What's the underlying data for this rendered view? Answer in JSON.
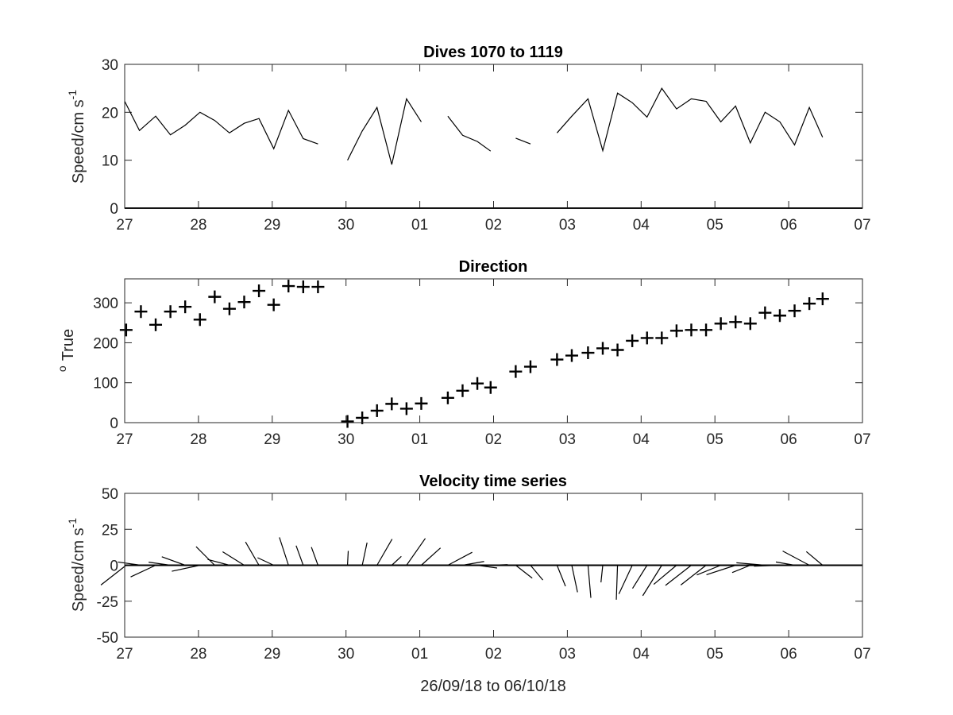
{
  "figure": {
    "xlabel": "26/09/18 to 06/10/18"
  },
  "chart_data": [
    {
      "type": "line",
      "title": "Dives 1070 to 1119",
      "ylabel": "Speed/cm s",
      "ylabel_sup": "-1",
      "xlim": [
        27,
        37
      ],
      "ylim": [
        0,
        30
      ],
      "xticks": [
        "27",
        "28",
        "29",
        "30",
        "01",
        "02",
        "03",
        "04",
        "05",
        "06",
        "07"
      ],
      "yticks": [
        "0",
        "10",
        "20",
        "30"
      ],
      "series": [
        {
          "points": [
            [
              27.0,
              22.3
            ],
            [
              27.2,
              16.2
            ],
            [
              27.42,
              19.2
            ],
            [
              27.62,
              15.3
            ],
            [
              27.82,
              17.3
            ],
            [
              28.02,
              20.0
            ],
            [
              28.22,
              18.3
            ],
            [
              28.42,
              15.7
            ],
            [
              28.62,
              17.7
            ],
            [
              28.82,
              18.7
            ],
            [
              29.02,
              12.4
            ],
            [
              29.22,
              20.4
            ],
            [
              29.42,
              14.5
            ],
            [
              29.62,
              13.4
            ]
          ]
        },
        {
          "points": [
            [
              30.02,
              10.0
            ],
            [
              30.22,
              16.1
            ],
            [
              30.42,
              21.0
            ],
            [
              30.62,
              9.1
            ],
            [
              30.82,
              22.8
            ],
            [
              31.02,
              18.0
            ]
          ]
        },
        {
          "points": [
            [
              31.38,
              19.2
            ],
            [
              31.58,
              15.2
            ],
            [
              31.78,
              13.9
            ],
            [
              31.96,
              11.9
            ]
          ]
        },
        {
          "points": [
            [
              32.3,
              14.6
            ],
            [
              32.5,
              13.4
            ]
          ]
        },
        {
          "points": [
            [
              32.86,
              15.7
            ],
            [
              33.06,
              19.2
            ],
            [
              33.28,
              22.8
            ],
            [
              33.48,
              12.0
            ],
            [
              33.68,
              24.0
            ],
            [
              33.88,
              22.0
            ],
            [
              34.08,
              19.0
            ],
            [
              34.28,
              25.0
            ],
            [
              34.48,
              20.7
            ],
            [
              34.68,
              22.8
            ],
            [
              34.88,
              22.3
            ],
            [
              35.08,
              18.0
            ],
            [
              35.28,
              21.3
            ],
            [
              35.48,
              13.6
            ],
            [
              35.68,
              20.0
            ],
            [
              35.88,
              18.0
            ],
            [
              36.08,
              13.2
            ],
            [
              36.28,
              21.0
            ],
            [
              36.46,
              14.8
            ]
          ]
        }
      ],
      "zero_line": true
    },
    {
      "type": "scatter",
      "title": "Direction",
      "ylabel": "True",
      "ylabel_pre": "o",
      "xlim": [
        27,
        37
      ],
      "ylim": [
        0,
        360
      ],
      "xticks": [
        "27",
        "28",
        "29",
        "30",
        "01",
        "02",
        "03",
        "04",
        "05",
        "06",
        "07"
      ],
      "yticks": [
        "0",
        "100",
        "200",
        "300"
      ],
      "marker": "plus",
      "x": [
        27.02,
        27.22,
        27.42,
        27.62,
        27.82,
        28.02,
        28.22,
        28.42,
        28.62,
        28.82,
        29.02,
        29.22,
        29.42,
        29.62,
        30.02,
        30.22,
        30.42,
        30.62,
        30.82,
        31.02,
        31.38,
        31.58,
        31.78,
        31.96,
        32.3,
        32.5,
        32.86,
        33.06,
        33.28,
        33.48,
        33.68,
        33.88,
        34.08,
        34.28,
        34.48,
        34.68,
        34.88,
        35.08,
        35.28,
        35.48,
        35.68,
        35.88,
        36.08,
        36.28,
        36.46
      ],
      "y": [
        232,
        278,
        245,
        278,
        290,
        258,
        315,
        285,
        302,
        330,
        295,
        342,
        340,
        340,
        3,
        12,
        30,
        47,
        35,
        48,
        62,
        80,
        98,
        88,
        128,
        140,
        158,
        168,
        175,
        186,
        182,
        205,
        212,
        212,
        230,
        232,
        232,
        248,
        252,
        248,
        275,
        268,
        280,
        298,
        310
      ]
    },
    {
      "type": "vector",
      "title": "Velocity time series",
      "ylabel": "Speed/cm s",
      "ylabel_sup": "-1",
      "xlim": [
        27,
        37
      ],
      "ylim": [
        -50,
        50
      ],
      "xticks": [
        "27",
        "28",
        "29",
        "30",
        "01",
        "02",
        "03",
        "04",
        "05",
        "06",
        "07"
      ],
      "yticks": [
        "50",
        "25",
        "0",
        "-25",
        "-50"
      ],
      "x": [
        27.02,
        27.22,
        27.42,
        27.62,
        27.82,
        28.02,
        28.22,
        28.42,
        28.62,
        28.82,
        29.02,
        29.22,
        29.42,
        29.62,
        30.02,
        30.22,
        30.42,
        30.62,
        30.82,
        31.02,
        31.38,
        31.58,
        31.78,
        31.96,
        32.3,
        32.5,
        32.86,
        33.06,
        33.28,
        33.48,
        33.68,
        33.88,
        34.08,
        34.28,
        34.48,
        34.68,
        34.88,
        35.08,
        35.28,
        35.48,
        35.68,
        35.88,
        36.08,
        36.28,
        36.46
      ],
      "speed": [
        22.3,
        16.2,
        19.2,
        15.3,
        17.3,
        20.0,
        18.3,
        15.7,
        17.7,
        18.7,
        12.4,
        20.4,
        14.5,
        13.4,
        10.0,
        16.1,
        21.0,
        9.1,
        22.8,
        18.0,
        19.2,
        15.2,
        13.9,
        11.9,
        14.6,
        13.4,
        15.7,
        19.2,
        22.8,
        12.0,
        24.0,
        22.0,
        19.0,
        25.0,
        20.7,
        22.8,
        22.3,
        18.0,
        21.3,
        13.6,
        20.0,
        18.0,
        13.2,
        21.0,
        14.8
      ],
      "direction_deg_true": [
        232,
        278,
        245,
        278,
        290,
        258,
        315,
        285,
        302,
        330,
        295,
        342,
        340,
        340,
        3,
        12,
        30,
        47,
        35,
        48,
        62,
        80,
        98,
        88,
        128,
        140,
        158,
        168,
        175,
        186,
        182,
        205,
        212,
        212,
        230,
        232,
        232,
        248,
        252,
        248,
        275,
        268,
        280,
        298,
        310
      ],
      "zero_line": true
    }
  ]
}
